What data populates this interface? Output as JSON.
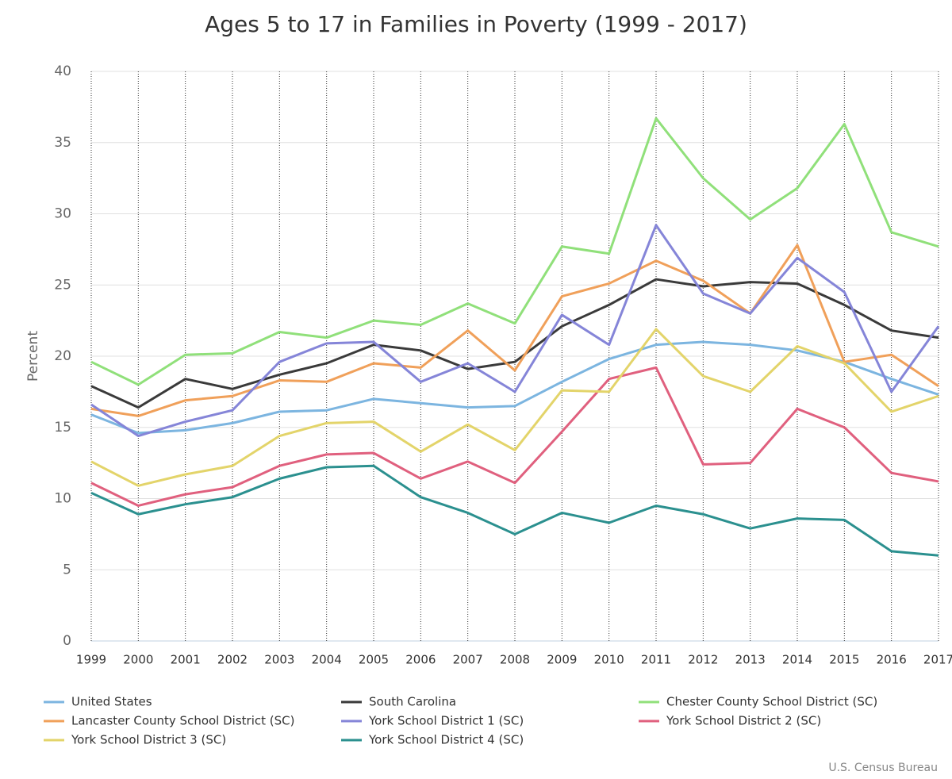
{
  "chart_data": {
    "type": "line",
    "title": "Ages 5 to 17 in Families in Poverty (1999 - 2017)",
    "y_label": "Percent",
    "credit": "U.S. Census Bureau",
    "x": [
      1999,
      2000,
      2001,
      2002,
      2003,
      2004,
      2005,
      2006,
      2007,
      2008,
      2009,
      2010,
      2011,
      2012,
      2013,
      2014,
      2015,
      2016,
      2017
    ],
    "xlim": [
      1999,
      2017
    ],
    "xticks": [
      1999,
      2000,
      2001,
      2002,
      2003,
      2004,
      2005,
      2006,
      2007,
      2008,
      2009,
      2010,
      2011,
      2012,
      2013,
      2014,
      2015,
      2016,
      2017
    ],
    "ylim": [
      0,
      40
    ],
    "yticks": [
      0,
      5,
      10,
      15,
      20,
      25,
      30,
      35,
      40
    ],
    "grid": true,
    "series": [
      {
        "name": "United States",
        "color": "#7cb5e0",
        "values": [
          15.9,
          14.6,
          14.8,
          15.3,
          16.1,
          16.2,
          17.0,
          16.7,
          16.4,
          16.5,
          18.2,
          19.8,
          20.8,
          21.0,
          20.8,
          20.4,
          19.6,
          18.4,
          17.3
        ]
      },
      {
        "name": "South Carolina",
        "color": "#3a3a3a",
        "values": [
          17.9,
          16.4,
          18.4,
          17.7,
          18.7,
          19.5,
          20.8,
          20.4,
          19.1,
          19.6,
          22.1,
          23.6,
          25.4,
          24.9,
          25.2,
          25.1,
          23.6,
          21.8,
          21.3
        ]
      },
      {
        "name": "Chester County School District (SC)",
        "color": "#90e07a",
        "values": [
          19.6,
          18.0,
          20.1,
          20.2,
          21.7,
          21.3,
          22.5,
          22.2,
          23.7,
          22.3,
          27.7,
          27.2,
          36.7,
          32.5,
          29.6,
          31.8,
          36.3,
          28.7,
          27.7
        ]
      },
      {
        "name": "Lancaster County School District (SC)",
        "color": "#f0a05a",
        "values": [
          16.3,
          15.8,
          16.9,
          17.2,
          18.3,
          18.2,
          19.5,
          19.2,
          21.8,
          19.0,
          24.2,
          25.1,
          26.7,
          25.3,
          23.0,
          27.8,
          19.6,
          20.1,
          17.9
        ]
      },
      {
        "name": "York School District 1 (SC)",
        "color": "#8585d8",
        "values": [
          16.6,
          14.4,
          15.4,
          16.2,
          19.6,
          20.9,
          21.0,
          18.2,
          19.5,
          17.5,
          22.9,
          20.8,
          29.2,
          24.4,
          23.0,
          26.9,
          24.5,
          17.5,
          22.1
        ]
      },
      {
        "name": "York School District 2 (SC)",
        "color": "#e0607e",
        "values": [
          11.1,
          9.5,
          10.3,
          10.8,
          12.3,
          13.1,
          13.2,
          11.4,
          12.6,
          11.1,
          14.7,
          18.4,
          19.2,
          12.4,
          12.5,
          16.3,
          15.0,
          11.8,
          11.2
        ]
      },
      {
        "name": "York School District 3 (SC)",
        "color": "#e3d46a",
        "values": [
          12.6,
          10.9,
          11.7,
          12.3,
          14.4,
          15.3,
          15.4,
          13.3,
          15.2,
          13.4,
          17.6,
          17.5,
          21.9,
          18.6,
          17.5,
          20.7,
          19.5,
          16.1,
          17.2
        ]
      },
      {
        "name": "York School District 4 (SC)",
        "color": "#2b908f",
        "values": [
          10.4,
          8.9,
          9.6,
          10.1,
          11.4,
          12.2,
          12.3,
          10.1,
          9.0,
          7.5,
          9.0,
          8.3,
          9.5,
          8.9,
          7.9,
          8.6,
          8.5,
          6.3,
          6.0
        ]
      }
    ]
  }
}
